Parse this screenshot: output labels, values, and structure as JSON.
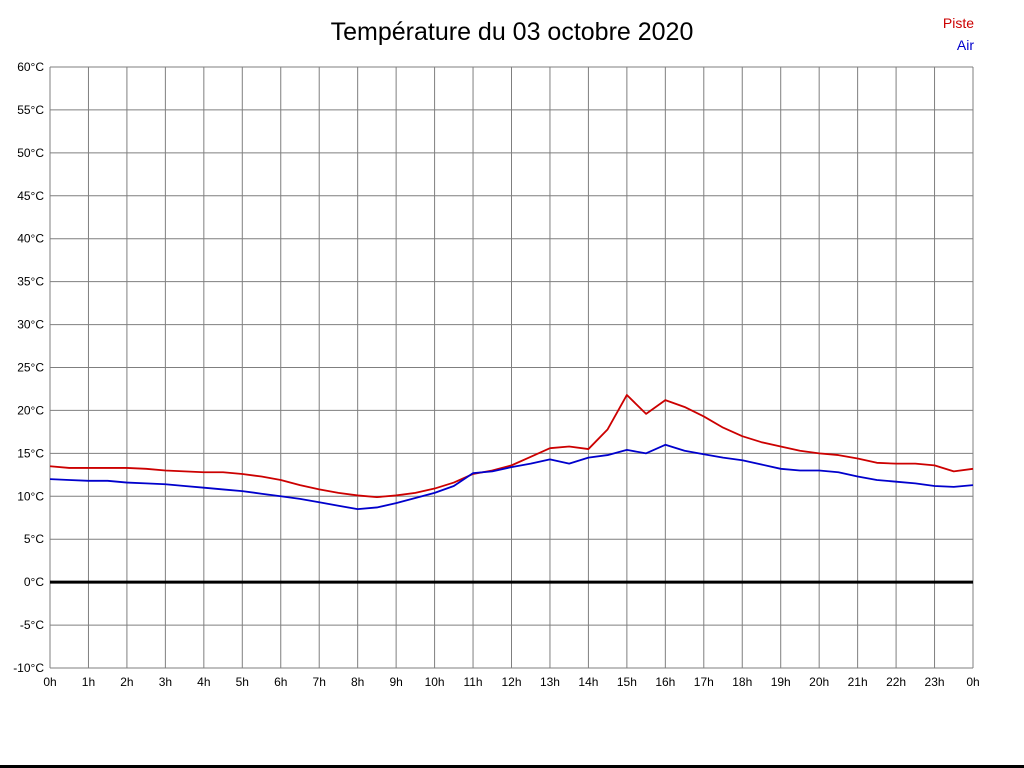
{
  "title": "Température du 03 octobre 2020",
  "legend": [
    {
      "label": "Piste",
      "color": "#cc0000"
    },
    {
      "label": "Air",
      "color": "#0000cc"
    }
  ],
  "chart_data": {
    "type": "line",
    "title": "Température du 03 octobre 2020",
    "xlabel": "",
    "ylabel": "",
    "xlim": [
      0,
      24
    ],
    "ylim": [
      -10,
      60
    ],
    "grid": true,
    "zero_line": true,
    "grid_color": "#7f7f7f",
    "zero_line_color": "#000000",
    "legend_position": "top-right",
    "x_tick_labels": [
      "0h",
      "1h",
      "2h",
      "3h",
      "4h",
      "5h",
      "6h",
      "7h",
      "8h",
      "9h",
      "10h",
      "11h",
      "12h",
      "13h",
      "14h",
      "15h",
      "16h",
      "17h",
      "18h",
      "19h",
      "20h",
      "21h",
      "22h",
      "23h",
      "0h"
    ],
    "y_tick_labels": [
      "60°C",
      "55°C",
      "50°C",
      "45°C",
      "40°C",
      "35°C",
      "30°C",
      "25°C",
      "20°C",
      "15°C",
      "10°C",
      "5°C",
      "0°C",
      "-5°C",
      "-10°C"
    ],
    "x": [
      0,
      0.5,
      1,
      1.5,
      2,
      2.5,
      3,
      3.5,
      4,
      4.5,
      5,
      5.5,
      6,
      6.5,
      7,
      7.5,
      8,
      8.5,
      9,
      9.5,
      10,
      10.5,
      11,
      11.5,
      12,
      12.5,
      13,
      13.5,
      14,
      14.5,
      15,
      15.5,
      16,
      16.5,
      17,
      17.5,
      18,
      18.5,
      19,
      19.5,
      20,
      20.5,
      21,
      21.5,
      22,
      22.5,
      23,
      23.5,
      24
    ],
    "series": [
      {
        "name": "Piste",
        "color": "#cc0000",
        "values": [
          13.5,
          13.3,
          13.3,
          13.3,
          13.3,
          13.2,
          13.0,
          12.9,
          12.8,
          12.8,
          12.6,
          12.3,
          11.9,
          11.3,
          10.8,
          10.4,
          10.1,
          9.9,
          10.1,
          10.4,
          10.9,
          11.6,
          12.6,
          13.0,
          13.6,
          14.6,
          15.6,
          15.8,
          15.5,
          17.8,
          21.8,
          19.6,
          21.2,
          20.4,
          19.3,
          18.0,
          17.0,
          16.3,
          15.8,
          15.3,
          15.0,
          14.8,
          14.4,
          13.9,
          13.8,
          13.8,
          13.6,
          12.9,
          13.2
        ]
      },
      {
        "name": "Air",
        "color": "#0000cc",
        "values": [
          12.0,
          11.9,
          11.8,
          11.8,
          11.6,
          11.5,
          11.4,
          11.2,
          11.0,
          10.8,
          10.6,
          10.3,
          10.0,
          9.7,
          9.3,
          8.9,
          8.5,
          8.7,
          9.2,
          9.8,
          10.4,
          11.2,
          12.7,
          12.9,
          13.4,
          13.8,
          14.3,
          13.8,
          14.5,
          14.8,
          15.4,
          15.0,
          16.0,
          15.3,
          14.9,
          14.5,
          14.2,
          13.7,
          13.2,
          13.0,
          13.0,
          12.8,
          12.3,
          11.9,
          11.7,
          11.5,
          11.2,
          11.1,
          11.3
        ]
      }
    ]
  }
}
